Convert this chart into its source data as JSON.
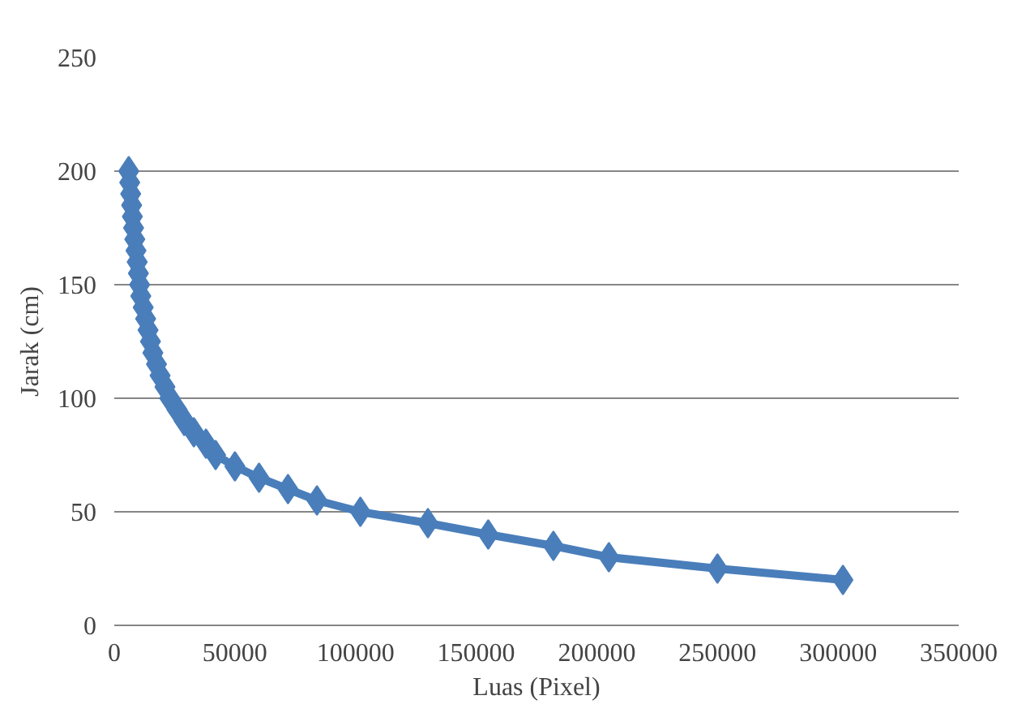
{
  "chart_data": {
    "type": "line",
    "xlabel": "Luas (Pixel)",
    "ylabel": "Jarak (cm)",
    "x": [
      302000,
      250000,
      205000,
      182000,
      155000,
      130000,
      102000,
      84000,
      72000,
      60000,
      50000,
      42000,
      38000,
      33000,
      29000,
      26000,
      23000,
      21000,
      19000,
      17500,
      16000,
      15000,
      14000,
      13000,
      12000,
      11000,
      10500,
      10000,
      9500,
      9000,
      8500,
      8000,
      7500,
      7200,
      6800,
      6400,
      6000
    ],
    "series": [
      {
        "color": "#4a7ebb",
        "values": [
          20,
          25,
          30,
          35,
          40,
          45,
          50,
          55,
          60,
          65,
          70,
          75,
          80,
          85,
          90,
          95,
          100,
          105,
          110,
          115,
          120,
          125,
          130,
          135,
          140,
          145,
          150,
          155,
          160,
          165,
          170,
          175,
          180,
          185,
          190,
          195,
          200
        ]
      }
    ],
    "xlim": [
      0,
      350000
    ],
    "xticks": [
      0,
      50000,
      100000,
      150000,
      200000,
      250000,
      300000,
      350000
    ],
    "ylim": [
      0,
      250
    ],
    "yticks": [
      0,
      50,
      100,
      150,
      200,
      250
    ],
    "grid": "y",
    "marker": "diamond",
    "line_style": "solid"
  }
}
